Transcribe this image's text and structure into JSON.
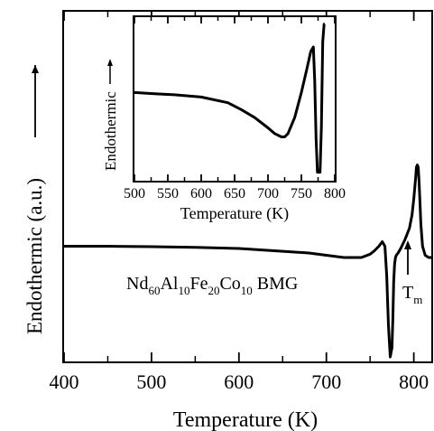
{
  "chart_data": {
    "type": "line",
    "xlabel": "Temperature (K)",
    "ylabel": "Endothermic (a.u.)",
    "xlim": [
      400,
      820
    ],
    "xticks": [
      "400",
      "500",
      "600",
      "700",
      "800"
    ],
    "ylabel_arrow": "up",
    "annotation": {
      "sample": {
        "base": "Nd",
        "sub1": "60",
        "el2": "Al",
        "sub2": "10",
        "el3": "Fe",
        "sub3": "20",
        "el4": "Co",
        "sub4": "10",
        "suffix": "BMG"
      },
      "tm": {
        "base": "T",
        "sub": "m"
      }
    },
    "series": [
      {
        "x": [
          400,
          450,
          500,
          550,
          600,
          640,
          680,
          700,
          720,
          730,
          740,
          750,
          755,
          760,
          764,
          767,
          769,
          771,
          773,
          775,
          776,
          777,
          778,
          779,
          780,
          782,
          785,
          790,
          795,
          798,
          800,
          802,
          803,
          804,
          805,
          806,
          807,
          808,
          810,
          813,
          817,
          820
        ],
        "y": [
          0.49,
          0.49,
          0.488,
          0.485,
          0.48,
          0.47,
          0.46,
          0.45,
          0.44,
          0.44,
          0.44,
          0.455,
          0.47,
          0.49,
          0.51,
          0.49,
          0.36,
          0.14,
          0.0,
          0.04,
          0.17,
          0.33,
          0.41,
          0.44,
          0.45,
          0.46,
          0.48,
          0.52,
          0.57,
          0.63,
          0.7,
          0.79,
          0.84,
          0.85,
          0.84,
          0.78,
          0.69,
          0.59,
          0.49,
          0.45,
          0.44,
          0.44
        ]
      }
    ],
    "inset": {
      "xlabel": "Temperature (K)",
      "ylabel": "Endothermic",
      "ylabel_arrow": "up",
      "xlim": [
        500,
        800
      ],
      "xticks": [
        "500",
        "550",
        "600",
        "650",
        "700",
        "750",
        "800"
      ],
      "series": [
        {
          "x": [
            500,
            530,
            560,
            600,
            640,
            660,
            680,
            700,
            710,
            720,
            725,
            730,
            740,
            750,
            758,
            764,
            768,
            770,
            772,
            774,
            776,
            778,
            780,
            782,
            784,
            785
          ],
          "y": [
            0.6,
            0.59,
            0.58,
            0.56,
            0.51,
            0.45,
            0.38,
            0.29,
            0.24,
            0.21,
            0.21,
            0.24,
            0.38,
            0.6,
            0.8,
            0.96,
            1.0,
            0.7,
            0.2,
            -0.1,
            -0.1,
            -0.1,
            0.3,
            1.05,
            1.2,
            1.2
          ]
        }
      ]
    }
  }
}
